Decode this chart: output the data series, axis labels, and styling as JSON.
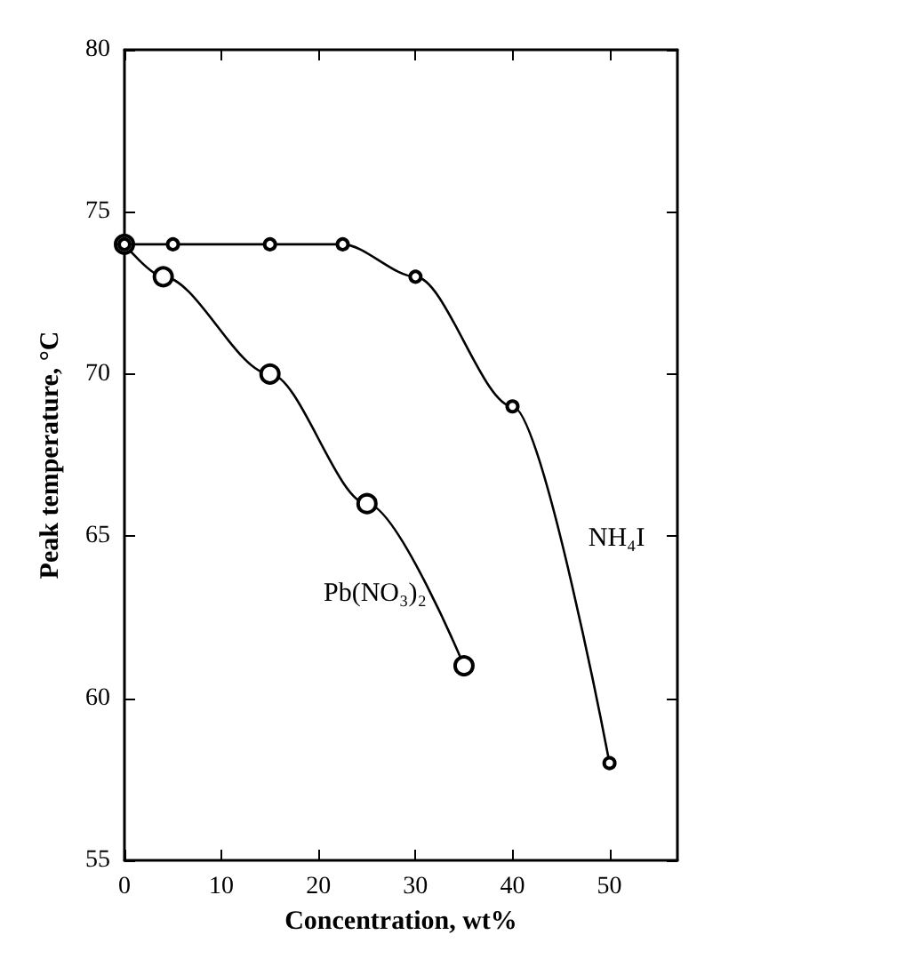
{
  "chart_data": {
    "type": "line",
    "xlabel": "Concentration, wt%",
    "ylabel": "Peak temperature, °C",
    "xlim": [
      0,
      57
    ],
    "xticks": [
      0,
      10,
      20,
      30,
      40,
      50
    ],
    "ylim": [
      55,
      80
    ],
    "yticks": [
      55,
      60,
      65,
      70,
      75,
      80
    ],
    "grid": false,
    "marker": "circle",
    "line_style": "solid",
    "series": [
      {
        "name": "Pb(NO₃)₂",
        "color": "#000000",
        "x": [
          0,
          4,
          15,
          25,
          35
        ],
        "values": [
          74,
          73,
          70,
          66,
          61
        ]
      },
      {
        "name": "NH₄I",
        "color": "#000000",
        "x": [
          0,
          5,
          15,
          22.5,
          30,
          40,
          50
        ],
        "values": [
          74,
          74,
          74,
          74,
          73,
          69,
          58
        ]
      }
    ]
  }
}
